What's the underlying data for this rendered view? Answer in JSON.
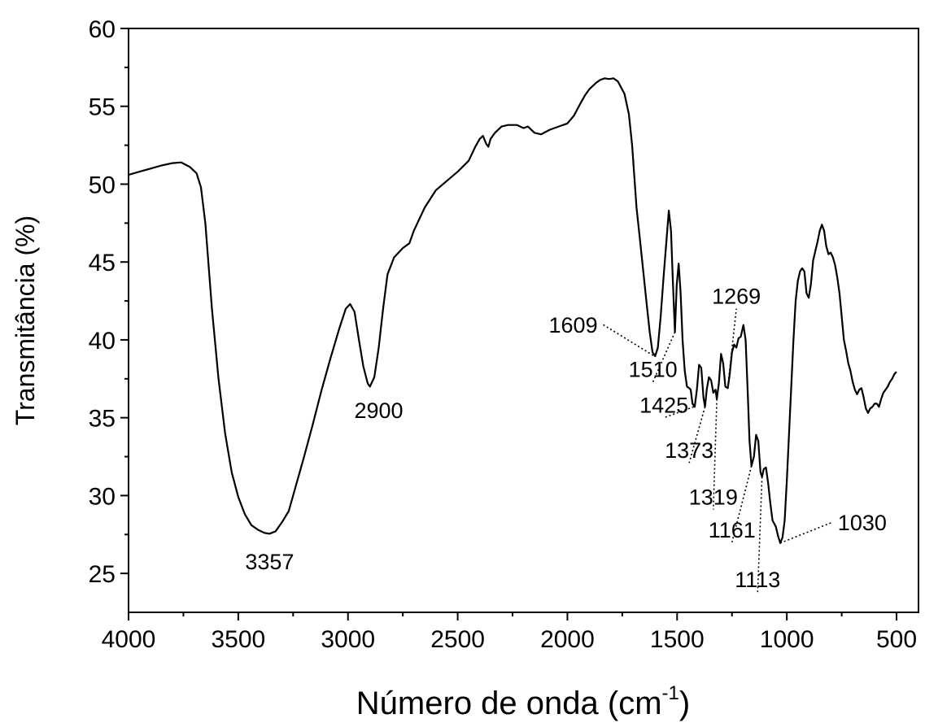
{
  "chart_data": {
    "type": "line",
    "xlabel": "Número de onda (cm",
    "xlabel_sup": "-1",
    "xlabel_close": ")",
    "ylabel": "Transmitância (%)",
    "xlim": [
      4000,
      400
    ],
    "ylim": [
      22.5,
      60
    ],
    "x_reversed": true,
    "grid": false,
    "legend": "none",
    "x_ticks": [
      4000,
      3500,
      3000,
      2500,
      2000,
      1500,
      1000,
      500
    ],
    "x_tick_labels": [
      "4000",
      "3500",
      "3000",
      "2500",
      "2000",
      "1500",
      "1000",
      "500"
    ],
    "y_ticks": [
      25,
      30,
      35,
      40,
      45,
      50,
      55,
      60
    ],
    "y_tick_labels": [
      "25",
      "30",
      "35",
      "40",
      "45",
      "50",
      "55",
      "60"
    ],
    "series": [
      {
        "color": "#000000",
        "points": [
          [
            4000,
            50.6
          ],
          [
            3950,
            50.8
          ],
          [
            3900,
            51.0
          ],
          [
            3850,
            51.2
          ],
          [
            3800,
            51.35
          ],
          [
            3760,
            51.4
          ],
          [
            3720,
            51.1
          ],
          [
            3690,
            50.7
          ],
          [
            3670,
            49.8
          ],
          [
            3650,
            47.5
          ],
          [
            3620,
            42.0
          ],
          [
            3590,
            37.5
          ],
          [
            3560,
            34.0
          ],
          [
            3530,
            31.5
          ],
          [
            3500,
            29.9
          ],
          [
            3470,
            28.8
          ],
          [
            3440,
            28.1
          ],
          [
            3410,
            27.8
          ],
          [
            3380,
            27.6
          ],
          [
            3357,
            27.55
          ],
          [
            3330,
            27.7
          ],
          [
            3300,
            28.3
          ],
          [
            3270,
            29.0
          ],
          [
            3240,
            30.5
          ],
          [
            3200,
            32.5
          ],
          [
            3160,
            34.6
          ],
          [
            3120,
            36.8
          ],
          [
            3080,
            38.8
          ],
          [
            3040,
            40.7
          ],
          [
            3010,
            42.0
          ],
          [
            2990,
            42.3
          ],
          [
            2970,
            41.8
          ],
          [
            2950,
            40.0
          ],
          [
            2930,
            38.3
          ],
          [
            2910,
            37.2
          ],
          [
            2900,
            37.0
          ],
          [
            2880,
            37.6
          ],
          [
            2860,
            39.5
          ],
          [
            2840,
            42.0
          ],
          [
            2820,
            44.2
          ],
          [
            2790,
            45.3
          ],
          [
            2750,
            45.9
          ],
          [
            2720,
            46.2
          ],
          [
            2700,
            47.0
          ],
          [
            2650,
            48.5
          ],
          [
            2600,
            49.6
          ],
          [
            2550,
            50.2
          ],
          [
            2500,
            50.8
          ],
          [
            2450,
            51.5
          ],
          [
            2420,
            52.4
          ],
          [
            2400,
            52.9
          ],
          [
            2385,
            53.1
          ],
          [
            2370,
            52.6
          ],
          [
            2360,
            52.4
          ],
          [
            2350,
            52.9
          ],
          [
            2330,
            53.3
          ],
          [
            2300,
            53.7
          ],
          [
            2270,
            53.8
          ],
          [
            2230,
            53.8
          ],
          [
            2200,
            53.6
          ],
          [
            2180,
            53.7
          ],
          [
            2150,
            53.3
          ],
          [
            2120,
            53.2
          ],
          [
            2080,
            53.5
          ],
          [
            2040,
            53.7
          ],
          [
            2000,
            53.9
          ],
          [
            1970,
            54.4
          ],
          [
            1940,
            55.2
          ],
          [
            1920,
            55.7
          ],
          [
            1900,
            56.1
          ],
          [
            1870,
            56.5
          ],
          [
            1850,
            56.7
          ],
          [
            1830,
            56.8
          ],
          [
            1810,
            56.75
          ],
          [
            1790,
            56.8
          ],
          [
            1770,
            56.6
          ],
          [
            1740,
            55.8
          ],
          [
            1720,
            54.5
          ],
          [
            1705,
            52.5
          ],
          [
            1695,
            50.5
          ],
          [
            1685,
            48.5
          ],
          [
            1670,
            46.5
          ],
          [
            1655,
            44.5
          ],
          [
            1640,
            42.5
          ],
          [
            1625,
            40.5
          ],
          [
            1612,
            39.2
          ],
          [
            1600,
            38.95
          ],
          [
            1588,
            39.5
          ],
          [
            1575,
            41.5
          ],
          [
            1562,
            44.0
          ],
          [
            1548,
            46.5
          ],
          [
            1538,
            48.3
          ],
          [
            1528,
            47.0
          ],
          [
            1520,
            44.0
          ],
          [
            1510,
            40.5
          ],
          [
            1502,
            43.5
          ],
          [
            1493,
            44.9
          ],
          [
            1484,
            43.0
          ],
          [
            1475,
            40.0
          ],
          [
            1465,
            38.0
          ],
          [
            1455,
            37.0
          ],
          [
            1445,
            36.9
          ],
          [
            1438,
            36.8
          ],
          [
            1430,
            35.9
          ],
          [
            1420,
            35.7
          ],
          [
            1410,
            36.8
          ],
          [
            1400,
            38.4
          ],
          [
            1390,
            38.2
          ],
          [
            1380,
            36.3
          ],
          [
            1373,
            35.7
          ],
          [
            1365,
            36.8
          ],
          [
            1355,
            37.6
          ],
          [
            1345,
            37.4
          ],
          [
            1335,
            36.6
          ],
          [
            1325,
            36.8
          ],
          [
            1319,
            36.2
          ],
          [
            1310,
            37.2
          ],
          [
            1300,
            39.1
          ],
          [
            1290,
            38.5
          ],
          [
            1280,
            37.0
          ],
          [
            1269,
            36.9
          ],
          [
            1260,
            37.8
          ],
          [
            1250,
            39.2
          ],
          [
            1240,
            39.7
          ],
          [
            1230,
            39.5
          ],
          [
            1220,
            40.1
          ],
          [
            1210,
            40.2
          ],
          [
            1198,
            40.95
          ],
          [
            1188,
            40.0
          ],
          [
            1178,
            36.5
          ],
          [
            1170,
            33.5
          ],
          [
            1161,
            31.9
          ],
          [
            1150,
            32.5
          ],
          [
            1140,
            33.9
          ],
          [
            1130,
            33.5
          ],
          [
            1120,
            31.5
          ],
          [
            1113,
            31.2
          ],
          [
            1105,
            31.7
          ],
          [
            1095,
            31.8
          ],
          [
            1085,
            30.8
          ],
          [
            1075,
            29.5
          ],
          [
            1065,
            28.4
          ],
          [
            1050,
            28.0
          ],
          [
            1040,
            27.4
          ],
          [
            1030,
            26.95
          ],
          [
            1020,
            27.3
          ],
          [
            1010,
            28.4
          ],
          [
            1000,
            31.0
          ],
          [
            990,
            34.0
          ],
          [
            980,
            37.0
          ],
          [
            970,
            40.0
          ],
          [
            960,
            42.5
          ],
          [
            950,
            43.8
          ],
          [
            940,
            44.4
          ],
          [
            930,
            44.6
          ],
          [
            920,
            44.4
          ],
          [
            910,
            43.0
          ],
          [
            900,
            42.7
          ],
          [
            890,
            43.6
          ],
          [
            880,
            45.1
          ],
          [
            870,
            45.7
          ],
          [
            860,
            46.3
          ],
          [
            850,
            47.0
          ],
          [
            840,
            47.4
          ],
          [
            830,
            47.0
          ],
          [
            820,
            46.0
          ],
          [
            810,
            45.5
          ],
          [
            800,
            45.6
          ],
          [
            790,
            45.3
          ],
          [
            780,
            44.8
          ],
          [
            770,
            44.0
          ],
          [
            760,
            43.0
          ],
          [
            750,
            41.5
          ],
          [
            740,
            40.0
          ],
          [
            730,
            39.3
          ],
          [
            720,
            38.5
          ],
          [
            710,
            38.0
          ],
          [
            700,
            37.3
          ],
          [
            690,
            36.8
          ],
          [
            680,
            36.5
          ],
          [
            670,
            36.8
          ],
          [
            660,
            36.9
          ],
          [
            650,
            36.3
          ],
          [
            640,
            35.6
          ],
          [
            630,
            35.3
          ],
          [
            620,
            35.6
          ],
          [
            610,
            35.7
          ],
          [
            600,
            35.9
          ],
          [
            590,
            35.9
          ],
          [
            580,
            35.7
          ],
          [
            570,
            36.2
          ],
          [
            560,
            36.6
          ],
          [
            550,
            36.8
          ],
          [
            540,
            37.0
          ],
          [
            530,
            37.3
          ],
          [
            520,
            37.5
          ],
          [
            510,
            37.8
          ],
          [
            500,
            37.95
          ]
        ]
      }
    ],
    "annotations": [
      {
        "label": "3357",
        "x": 3357,
        "y": 27.55,
        "leader": false,
        "lx": 3357,
        "ly": 25.8
      },
      {
        "label": "2900",
        "x": 2900,
        "y": 37.0,
        "leader": false,
        "lx": 2860,
        "ly": 35.5
      },
      {
        "label": "1609",
        "x": 1609,
        "y": 39.0,
        "leader": true,
        "lx": 1840,
        "ly": 41.0,
        "anchor": "end"
      },
      {
        "label": "1510",
        "x": 1510,
        "y": 40.5,
        "leader": true,
        "lx": 1610,
        "ly": 37.3
      },
      {
        "label": "1425",
        "x": 1425,
        "y": 35.7,
        "leader": true,
        "lx": 1560,
        "ly": 35.0
      },
      {
        "label": "1373",
        "x": 1373,
        "y": 35.7,
        "leader": true,
        "lx": 1445,
        "ly": 32.1
      },
      {
        "label": "1319",
        "x": 1319,
        "y": 36.2,
        "leader": true,
        "lx": 1335,
        "ly": 29.1
      },
      {
        "label": "1269",
        "x": 1269,
        "y": 37.0,
        "leader": true,
        "lx": 1230,
        "ly": 42.0
      },
      {
        "label": "1161",
        "x": 1161,
        "y": 31.9,
        "leader": true,
        "lx": 1250,
        "ly": 27.0
      },
      {
        "label": "1113",
        "x": 1113,
        "y": 31.2,
        "leader": true,
        "lx": 1133,
        "ly": 23.8
      },
      {
        "label": "1030",
        "x": 1030,
        "y": 26.95,
        "leader": true,
        "lx": 790,
        "ly": 28.3,
        "anchor": "start"
      }
    ]
  }
}
